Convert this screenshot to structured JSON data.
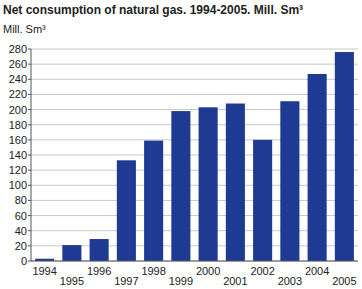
{
  "chart_data": {
    "type": "bar",
    "title": "Net consumption of natural gas. 1994-2005. Mill. Sm³",
    "y_label": "Mill. Sm³",
    "categories": [
      "1994",
      "1995",
      "1996",
      "1997",
      "1998",
      "1999",
      "2000",
      "2001",
      "2002",
      "2003",
      "2004",
      "2005"
    ],
    "values": [
      3,
      21,
      29,
      133,
      159,
      198,
      203,
      208,
      160,
      211,
      247,
      276
    ],
    "color": "#1f3a93",
    "ylim": [
      0,
      280
    ],
    "yticks": [
      0,
      20,
      40,
      60,
      80,
      100,
      120,
      140,
      160,
      180,
      200,
      220,
      240,
      260,
      280
    ],
    "grid": true
  }
}
